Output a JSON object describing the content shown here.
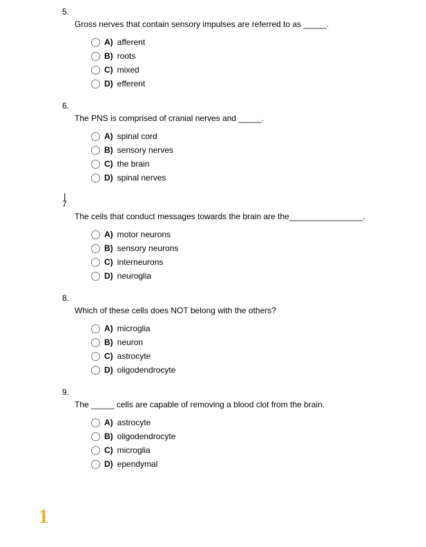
{
  "page_marker": "1",
  "questions": [
    {
      "number": "5.",
      "text": "Gross nerves that contain sensory impulses are referred to as _____.",
      "options": [
        {
          "label": "A)",
          "text": "afferent"
        },
        {
          "label": "B)",
          "text": "roots"
        },
        {
          "label": "C)",
          "text": "mixed"
        },
        {
          "label": "D)",
          "text": "efferent"
        }
      ]
    },
    {
      "number": "6.",
      "text": "The PNS is comprised of cranial nerves and _____.",
      "options": [
        {
          "label": "A)",
          "text": "spinal cord"
        },
        {
          "label": "B)",
          "text": "sensory nerves"
        },
        {
          "label": "C)",
          "text": "the brain"
        },
        {
          "label": "D)",
          "text": "spinal nerves"
        }
      ]
    },
    {
      "number": "7",
      "text": "The cells that conduct messages towards the brain are the________________.",
      "options": [
        {
          "label": "A)",
          "text": "motor neurons"
        },
        {
          "label": "B)",
          "text": "sensory neurons"
        },
        {
          "label": "C)",
          "text": "interneurons"
        },
        {
          "label": "D)",
          "text": "neuroglia"
        }
      ]
    },
    {
      "number": "8.",
      "text": "Which of these cells does NOT belong with the others?",
      "options": [
        {
          "label": "A)",
          "text": "microglia"
        },
        {
          "label": "B)",
          "text": "neuron"
        },
        {
          "label": "C)",
          "text": "astrocyte"
        },
        {
          "label": "D)",
          "text": "oligodendrocyte"
        }
      ]
    },
    {
      "number": "9.",
      "text": "The _____ cells are capable of removing a blood clot from the brain.",
      "options": [
        {
          "label": "A)",
          "text": "astrocyte"
        },
        {
          "label": "B)",
          "text": "oligodendrocyte"
        },
        {
          "label": "C)",
          "text": "microglia"
        },
        {
          "label": "D)",
          "text": "ependymal"
        }
      ]
    }
  ]
}
